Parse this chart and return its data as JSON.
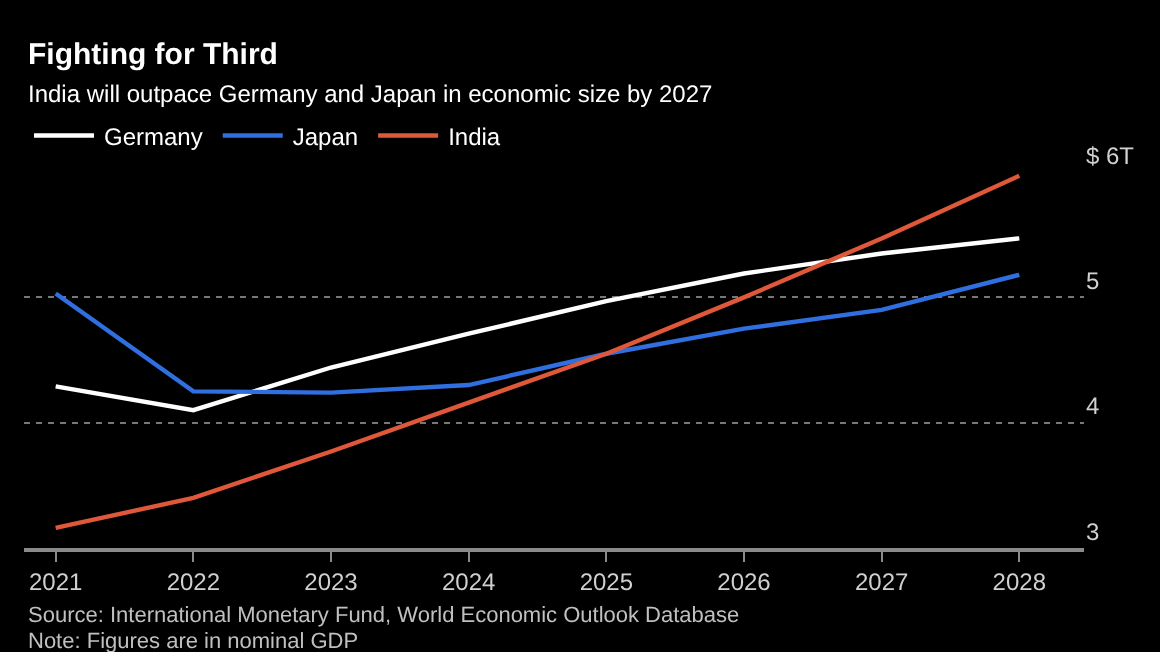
{
  "chart_data": {
    "type": "line",
    "title": "Fighting for Third",
    "subtitle": "India will outpace Germany and Japan in economic size by 2027",
    "x": [
      2021,
      2022,
      2023,
      2024,
      2025,
      2026,
      2027,
      2028
    ],
    "series": [
      {
        "name": "Germany",
        "color": "#ffffff",
        "values": [
          4.29,
          4.1,
          4.44,
          4.71,
          4.97,
          5.19,
          5.35,
          5.47
        ]
      },
      {
        "name": "Japan",
        "color": "#2f6fe0",
        "values": [
          5.03,
          4.25,
          4.24,
          4.3,
          4.55,
          4.75,
          4.9,
          5.18
        ]
      },
      {
        "name": "India",
        "color": "#e0583a",
        "values": [
          3.16,
          3.4,
          3.77,
          4.16,
          4.55,
          5.0,
          5.47,
          5.97
        ]
      }
    ],
    "xlim": [
      2020.77,
      2028.47
    ],
    "xticks": [
      2021,
      2022,
      2023,
      2024,
      2025,
      2026,
      2027,
      2028
    ],
    "ylim": [
      3,
      6
    ],
    "yticks": [
      3,
      4,
      5,
      {
        "value": 6,
        "label": "$ 6T"
      }
    ],
    "grid": "y",
    "legend": "top left",
    "marker": "none",
    "line_style": "solid",
    "annotations": [
      "Source: International Monetary Fund, World Economic Outlook Database",
      "Note: Figures are in nominal GDP"
    ]
  }
}
